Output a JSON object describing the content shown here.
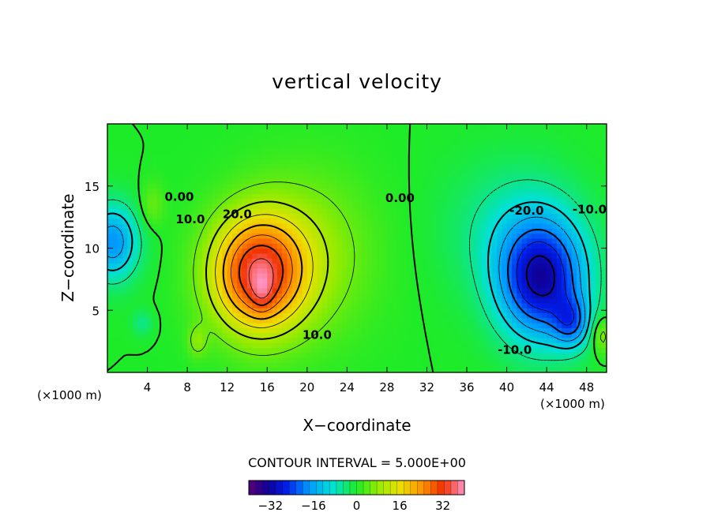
{
  "chart_data": {
    "type": "heatmap",
    "title": "vertical velocity",
    "xlabel": "X−coordinate",
    "ylabel": "Z−coordinate",
    "x_unit_left": "(×1000 m)",
    "x_unit_right": "(×1000 m)",
    "xlim": [
      0,
      50
    ],
    "ylim": [
      0,
      20
    ],
    "x_ticks": [
      4,
      8,
      12,
      16,
      20,
      24,
      28,
      32,
      36,
      40,
      44,
      48
    ],
    "y_ticks": [
      5,
      10,
      15
    ],
    "contour_interval_text": "CONTOUR INTERVAL = 5.000E+00",
    "contour_interval": 5.0,
    "colorbar": {
      "range": [
        -40,
        40
      ],
      "ticks": [
        -32,
        -16,
        0,
        16,
        32
      ],
      "tick_labels": [
        "−32",
        "−16",
        "0",
        "16",
        "32"
      ]
    },
    "contour_labels": [
      {
        "text": "0.00",
        "x": 7.2,
        "y": 13.8
      },
      {
        "text": "10.0",
        "x": 8.3,
        "y": 12.0
      },
      {
        "text": "20.0",
        "x": 13.0,
        "y": 12.4
      },
      {
        "text": "10.0",
        "x": 21.0,
        "y": 2.7
      },
      {
        "text": "0.00",
        "x": 29.3,
        "y": 13.7
      },
      {
        "text": "-20.0",
        "x": 42.0,
        "y": 12.7
      },
      {
        "text": "-10.0",
        "x": 48.3,
        "y": 12.8
      },
      {
        "text": "-10.0",
        "x": 40.8,
        "y": 1.5
      }
    ],
    "features": [
      {
        "name": "updraft maximum",
        "x": 15.0,
        "z": 8.0,
        "peak": 37
      },
      {
        "name": "downdraft minimum",
        "x": 43.5,
        "z": 7.5,
        "peak": -33
      },
      {
        "name": "secondary downdraft",
        "x": 46.5,
        "z": 4.0,
        "peak": -30
      },
      {
        "name": "western downdraft",
        "x": 0.5,
        "z": 10.5,
        "peak": -18
      }
    ]
  }
}
